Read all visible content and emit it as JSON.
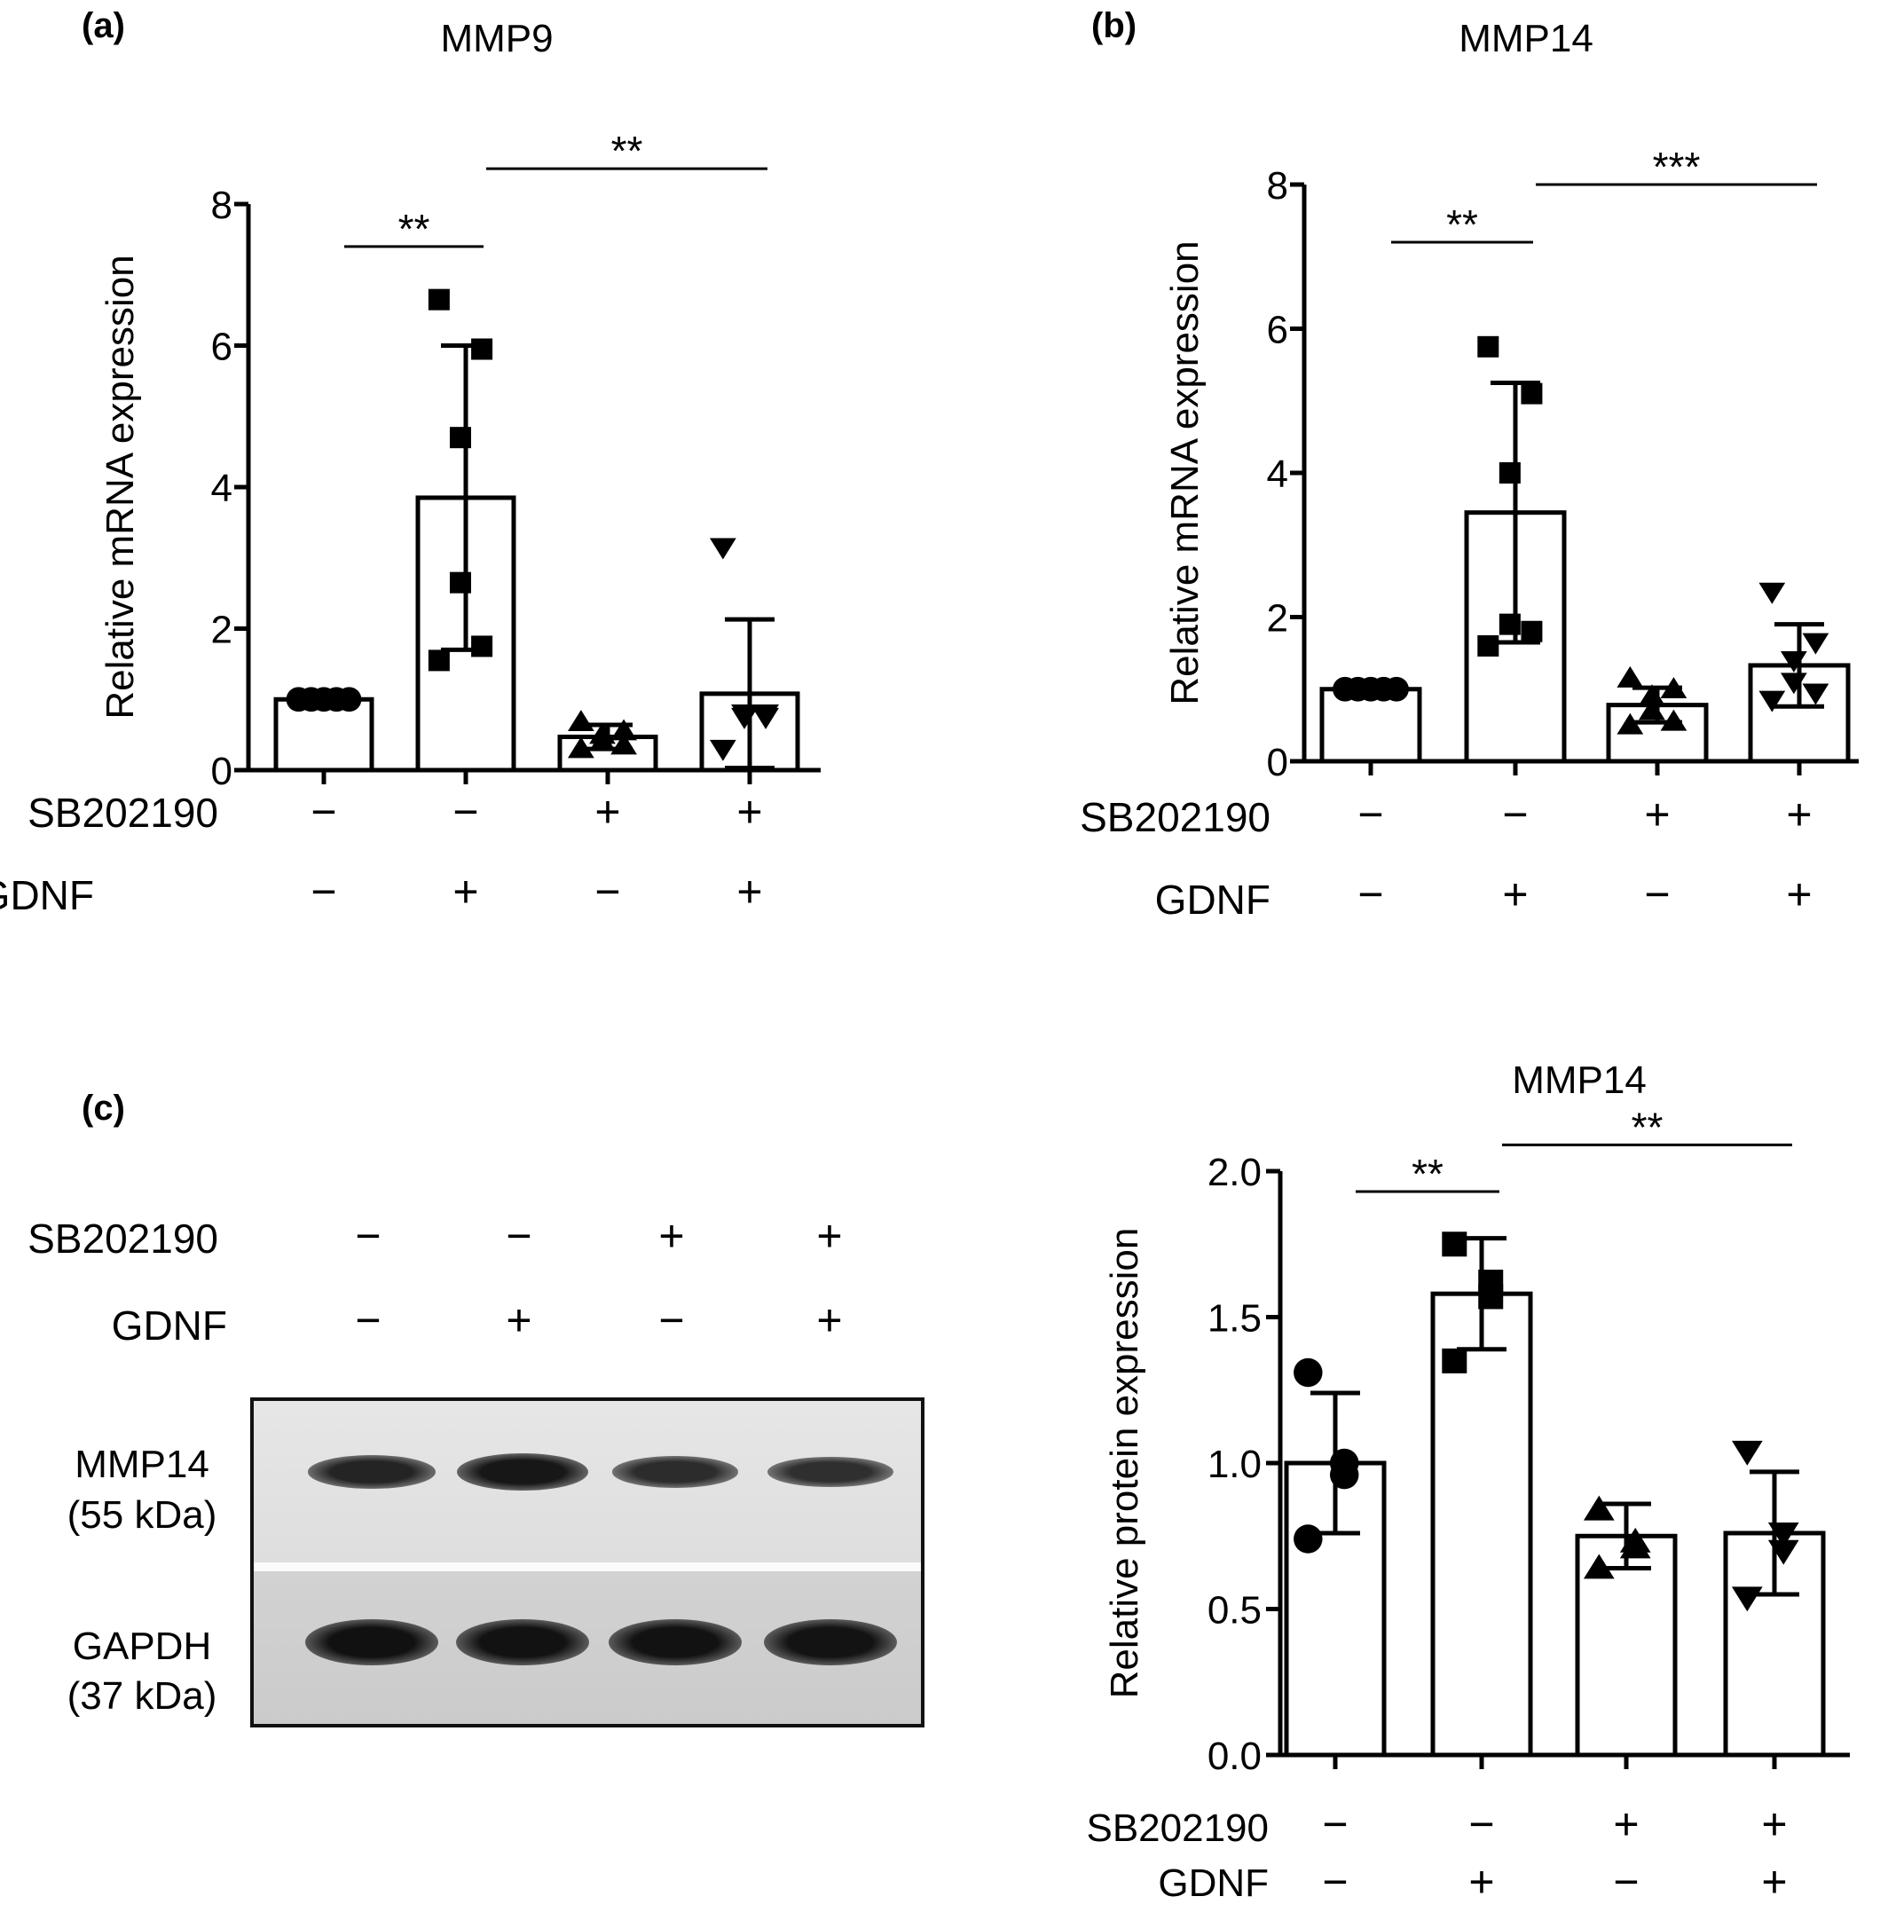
{
  "panels": [
    {
      "label": "(a)",
      "chart_data": {
        "type": "bar",
        "title": "MMP9",
        "ylabel": "Relative mRNA expression",
        "ylim": [
          0,
          8
        ],
        "yticks": [
          "0",
          "2",
          "4",
          "6",
          "8"
        ],
        "categories": [
          "1",
          "2",
          "3",
          "4"
        ],
        "treatments": [
          {
            "name": "SB202190",
            "values": [
              "−",
              "−",
              "+",
              "+"
            ]
          },
          {
            "name": "GDNF",
            "values": [
              "−",
              "+",
              "−",
              "+"
            ]
          }
        ],
        "bars": [
          {
            "mean": 1.0,
            "sd": 0.0,
            "marker": "circle",
            "points": [
              1.0,
              1.0,
              1.0,
              1.0,
              1.0
            ]
          },
          {
            "mean": 3.85,
            "sd": 2.15,
            "marker": "square",
            "points": [
              6.65,
              5.95,
              4.7,
              2.65,
              1.75,
              1.55
            ]
          },
          {
            "mean": 0.47,
            "sd": 0.17,
            "marker": "triangle-up",
            "points": [
              0.68,
              0.55,
              0.5,
              0.4,
              0.35,
              0.3
            ]
          },
          {
            "mean": 1.08,
            "sd": 1.05,
            "marker": "triangle-down",
            "points": [
              3.15,
              0.8,
              0.8,
              0.75,
              0.75,
              0.3
            ]
          }
        ],
        "significance": [
          {
            "from": 0,
            "to": 1,
            "label": "**",
            "y": 7.4
          },
          {
            "from": 1,
            "to": 3,
            "label": "**",
            "y": 8.5
          }
        ]
      }
    },
    {
      "label": "(b)",
      "chart_data": {
        "type": "bar",
        "title": "MMP14",
        "ylabel": "Relative mRNA expression",
        "ylim": [
          0,
          8
        ],
        "yticks": [
          "0",
          "2",
          "4",
          "6",
          "8"
        ],
        "categories": [
          "1",
          "2",
          "3",
          "4"
        ],
        "treatments": [
          {
            "name": "SB202190",
            "values": [
              "−",
              "−",
              "+",
              "+"
            ]
          },
          {
            "name": "GDNF",
            "values": [
              "−",
              "+",
              "−",
              "+"
            ]
          }
        ],
        "bars": [
          {
            "mean": 1.0,
            "sd": 0.0,
            "marker": "circle",
            "points": [
              1.0,
              1.0,
              1.0,
              1.0,
              1.0
            ]
          },
          {
            "mean": 3.45,
            "sd": 1.8,
            "marker": "square",
            "points": [
              5.75,
              5.1,
              4.0,
              1.9,
              1.8,
              1.6
            ]
          },
          {
            "mean": 0.78,
            "sd": 0.24,
            "marker": "triangle-up",
            "points": [
              1.15,
              1.0,
              0.9,
              0.7,
              0.55,
              0.5
            ]
          },
          {
            "mean": 1.33,
            "sd": 0.57,
            "marker": "triangle-down",
            "points": [
              2.35,
              1.65,
              1.4,
              1.1,
              0.95,
              0.85
            ]
          }
        ],
        "significance": [
          {
            "from": 0,
            "to": 1,
            "label": "**",
            "y": 7.2
          },
          {
            "from": 1,
            "to": 3,
            "label": "***",
            "y": 8.0
          }
        ]
      }
    },
    {
      "label": "(c)",
      "chart_data": {
        "type": "bar",
        "title": "MMP14",
        "ylabel": "Relative protein expression",
        "ylim": [
          0,
          2
        ],
        "yticks": [
          "0.0",
          "0.5",
          "1.0",
          "1.5",
          "2.0"
        ],
        "categories": [
          "1",
          "2",
          "3",
          "4"
        ],
        "treatments": [
          {
            "name": "SB202190",
            "values": [
              "−",
              "−",
              "+",
              "+"
            ]
          },
          {
            "name": "GDNF",
            "values": [
              "−",
              "+",
              "−",
              "+"
            ]
          }
        ],
        "bars": [
          {
            "mean": 1.0,
            "sd": 0.24,
            "marker": "circle",
            "points": [
              1.31,
              1.0,
              0.96,
              0.74
            ]
          },
          {
            "mean": 1.58,
            "sd": 0.19,
            "marker": "square",
            "points": [
              1.75,
              1.62,
              1.57,
              1.35
            ]
          },
          {
            "mean": 0.75,
            "sd": 0.11,
            "marker": "triangle-up",
            "points": [
              0.84,
              0.73,
              0.71,
              0.64
            ]
          },
          {
            "mean": 0.76,
            "sd": 0.21,
            "marker": "triangle-down",
            "points": [
              1.04,
              0.76,
              0.7,
              0.54
            ]
          }
        ],
        "significance": [
          {
            "from": 0,
            "to": 1,
            "label": "**",
            "y": 1.93
          },
          {
            "from": 1,
            "to": 3,
            "label": "**",
            "y": 2.09
          }
        ]
      }
    }
  ],
  "blot": {
    "treatments": [
      {
        "name": "SB202190",
        "values": [
          "−",
          "−",
          "+",
          "+"
        ]
      },
      {
        "name": "GDNF",
        "values": [
          "−",
          "+",
          "−",
          "+"
        ]
      }
    ],
    "rows": [
      {
        "protein": "MMP14",
        "size": "(55 kDa)",
        "intensity": [
          0.72,
          0.9,
          0.62,
          0.58
        ]
      },
      {
        "protein": "GAPDH",
        "size": "(37 kDa)",
        "intensity": [
          0.97,
          0.96,
          0.96,
          0.95
        ]
      }
    ]
  }
}
